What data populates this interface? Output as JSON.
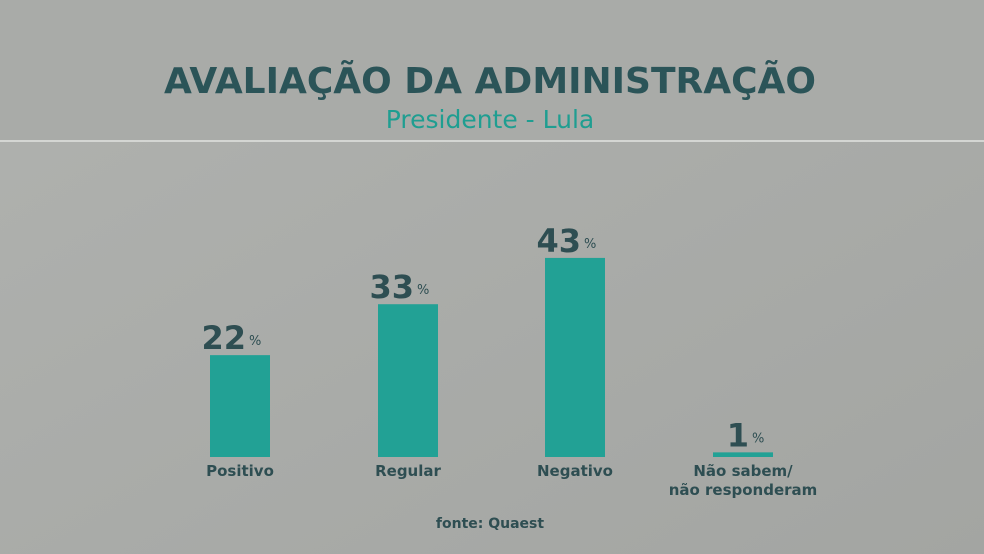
{
  "chart_data": {
    "type": "bar",
    "title": "AVALIAÇÃO DA ADMINISTRAÇÃO",
    "subtitle": "Presidente - Lula",
    "categories": [
      "Positivo",
      "Regular",
      "Negativo",
      "Não sabem/\nnão responderam"
    ],
    "values": [
      22,
      33,
      43,
      1
    ],
    "unit": "%",
    "color": "#22a195",
    "source": "fonte: Quaest"
  }
}
